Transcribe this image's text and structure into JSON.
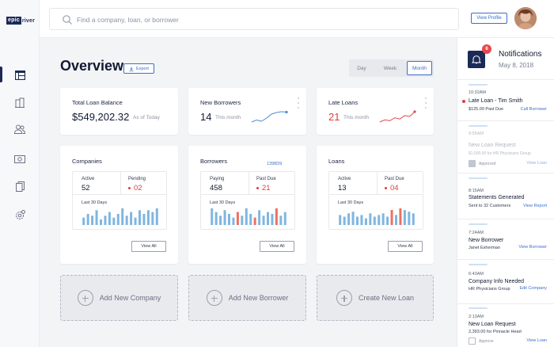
{
  "brand": {
    "logo_part1": "epic",
    "logo_part2": "river"
  },
  "search": {
    "placeholder": "Find a company, loan, or borrower"
  },
  "header": {
    "view_profile": "View Profile"
  },
  "overview": {
    "title": "Overview",
    "export_label": "Export",
    "periods": [
      "Day",
      "Week",
      "Month"
    ],
    "selected_period": "Month"
  },
  "stats": [
    {
      "label": "Total Loan Balance",
      "value": "$549,202.32",
      "sub": "As of Today"
    },
    {
      "label": "New Borrowers",
      "value": "14",
      "sub": "This month"
    },
    {
      "label": "Late Loans",
      "value": "21",
      "sub": "This month"
    }
  ],
  "sparklines": {
    "new_borrowers": [
      4,
      4.5,
      4.2,
      5,
      6,
      6.4,
      6.6,
      6.5
    ],
    "late_loans": [
      2,
      3,
      2.6,
      4,
      3.4,
      5,
      4.6,
      6.8
    ]
  },
  "panels": [
    {
      "title": "Companies",
      "link": "",
      "m1_label": "Active",
      "m1_value": "52",
      "m2_label": "Pending",
      "m2_value": "02",
      "chart_label": "Last 30 Days",
      "view_all": "View All",
      "bars": [
        4,
        6,
        5,
        8,
        3,
        5,
        7,
        4,
        6,
        9,
        5,
        7,
        4,
        8,
        6,
        8,
        7,
        9
      ]
    },
    {
      "title": "Borrowers",
      "link": "1398D9",
      "m1_label": "Paying",
      "m1_value": "458",
      "m2_label": "Past Due",
      "m2_value": "21",
      "chart_label": "Last 30 Days",
      "view_all": "View All",
      "bars": [
        9,
        7,
        5,
        8,
        6,
        4,
        7,
        5,
        9,
        6,
        4,
        8,
        5,
        7,
        6,
        9,
        5,
        7
      ]
    },
    {
      "title": "Loans",
      "link": "",
      "m1_label": "Active",
      "m1_value": "13",
      "m2_label": "Past Due",
      "m2_value": "04",
      "chart_label": "Last 30 Days",
      "view_all": "View All",
      "bars": [
        6,
        5,
        7,
        8,
        5,
        6,
        4,
        7,
        5,
        6,
        7,
        5,
        9,
        6,
        10,
        9,
        8,
        7
      ]
    }
  ],
  "add_actions": [
    "Add New Company",
    "Add New Borrower",
    "Create New Loan"
  ],
  "notifications": {
    "title": "Notifications",
    "date": "May 8, 2018",
    "badge": "6",
    "items": [
      {
        "time": "10:32AM",
        "title": "Late Loan - Tim Smith",
        "sub": "$125.00 Past Due",
        "action": "Call Borrower",
        "muted": false,
        "check": ""
      },
      {
        "time": "9:55AM",
        "title": "New Loan Request",
        "sub": "$1,500.00 for HR Physicians Group",
        "action": "View Loan",
        "muted": true,
        "check": "Approved"
      },
      {
        "time": "8:15AM",
        "title": "Statements Generated",
        "sub": "Sent to 32 Customers",
        "action": "View Report",
        "muted": false,
        "check": ""
      },
      {
        "time": "7:24AM",
        "title": "New Borrower",
        "sub": "Janet Esherman",
        "action": "View Borrower",
        "muted": false,
        "check": ""
      },
      {
        "time": "6:43AM",
        "title": "Company Info Needed",
        "sub": "HR Physicians Group",
        "action": "Edit Company",
        "muted": false,
        "check": ""
      },
      {
        "time": "2:13AM",
        "title": "New Loan Request",
        "sub": "2,393.00 for Pinnacle Heart",
        "action": "View Loan",
        "muted": false,
        "check": "Approve"
      }
    ]
  },
  "colors": {
    "accent": "#3d6ec9",
    "navy": "#1b2a57",
    "red": "#e23b3b",
    "bar_blue": "#7fb6e0",
    "bar_red": "#ee6f61",
    "spark_blue": "#4f8ad6",
    "spark_red": "#e24848"
  }
}
